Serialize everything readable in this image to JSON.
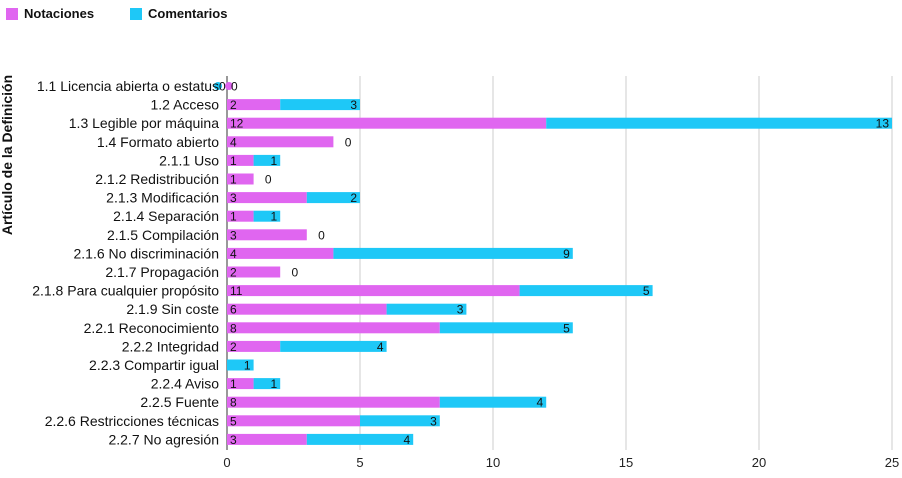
{
  "chart_data": {
    "type": "bar",
    "orientation": "horizontal",
    "stacked": true,
    "ylabel": "Artículo de la Definición",
    "xlabel": "",
    "xlim": [
      0,
      25
    ],
    "xticks": [
      0,
      5,
      10,
      15,
      20,
      25
    ],
    "grid": true,
    "legend_position": "top-left",
    "categories": [
      "1.1 Licencia abierta o estatus",
      "1.2 Acceso",
      "1.3 Legible por máquina",
      "1.4 Formato abierto",
      "2.1.1 Uso",
      "2.1.2 Redistribución",
      "2.1.3 Modificación",
      "2.1.4 Separación",
      "2.1.5 Compilación",
      "2.1.6 No discriminación",
      "2.1.7 Propagación",
      "2.1.8 Para cualquier propósito",
      "2.1.9 Sin coste",
      "2.2.1 Reconocimiento",
      "2.2.2 Integridad",
      "2.2.3 Compartir igual",
      "2.2.4 Aviso",
      "2.2.5 Fuente",
      "2.2.6 Restricciones técnicas",
      "2.2.7 No agresión"
    ],
    "series": [
      {
        "name": "Notaciones",
        "color": "#e066f0",
        "values": [
          0,
          2,
          12,
          4,
          1,
          1,
          3,
          1,
          3,
          4,
          2,
          11,
          6,
          8,
          2,
          0,
          1,
          8,
          5,
          3
        ]
      },
      {
        "name": "Comentarios",
        "color": "#1ec8f7",
        "values": [
          0,
          3,
          13,
          0,
          1,
          0,
          2,
          1,
          0,
          9,
          0,
          5,
          3,
          5,
          4,
          1,
          1,
          4,
          3,
          4
        ]
      }
    ]
  }
}
